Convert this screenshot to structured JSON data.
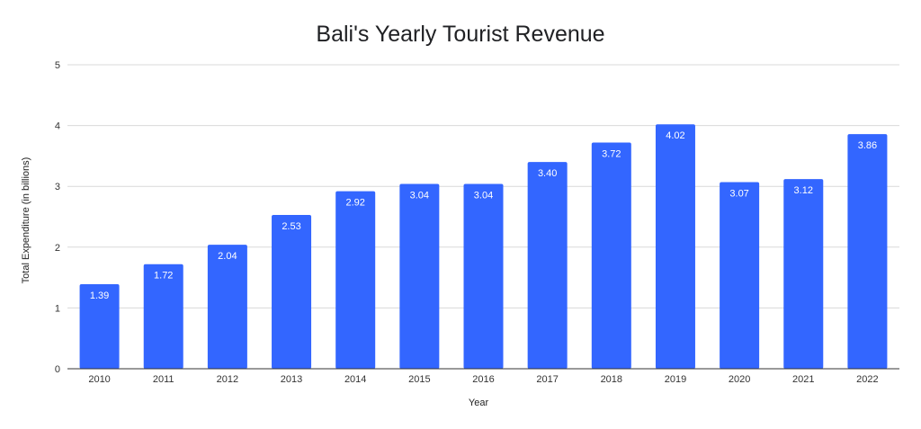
{
  "chart_data": {
    "type": "bar",
    "title": "Bali's Yearly Tourist Revenue",
    "xlabel": "Year",
    "ylabel": "Total Expenditure (in billions)",
    "categories": [
      "2010",
      "2011",
      "2012",
      "2013",
      "2014",
      "2015",
      "2016",
      "2017",
      "2018",
      "2019",
      "2020",
      "2021",
      "2022"
    ],
    "values": [
      1.39,
      1.72,
      2.04,
      2.53,
      2.92,
      3.04,
      3.04,
      3.4,
      3.72,
      4.02,
      3.07,
      3.12,
      3.86
    ],
    "data_labels": [
      "1.39",
      "1.72",
      "2.04",
      "2.53",
      "2.92",
      "3.04",
      "3.04",
      "3.40",
      "3.72",
      "4.02",
      "3.07",
      "3.12",
      "3.86"
    ],
    "ylim": [
      0,
      5
    ],
    "yticks": [
      "0",
      "1",
      "2",
      "3",
      "4",
      "5"
    ],
    "grid": true,
    "legend": "none",
    "colors": {
      "bar": "#3366ff",
      "grid": "#d9d9d9",
      "axis": "#333333",
      "label": "#ffffff"
    }
  }
}
